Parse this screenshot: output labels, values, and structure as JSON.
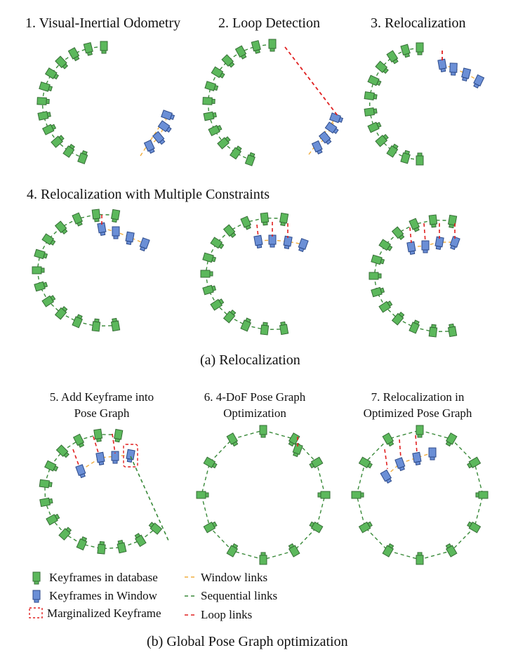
{
  "panels": {
    "p1": "1. Visual-Inertial Odometry",
    "p2": "2. Loop Detection",
    "p3": "3. Relocalization",
    "p4": "4. Relocalization with Multiple Constraints",
    "p5a": "5. Add Keyframe into",
    "p5b": "Pose Graph",
    "p6a": "6. 4-DoF Pose Graph",
    "p6b": "Optimization",
    "p7a": "7. Relocalization in",
    "p7b": "Optimized Pose Graph"
  },
  "captions": {
    "a": "(a)  Relocalization",
    "b": "(b)  Global Pose Graph optimization"
  },
  "legend": {
    "kf_db": "Keyframes in database",
    "kf_win": "Keyframes in Window",
    "marg": "Marginalized Keyframe",
    "window_links": "Window links",
    "seq_links": "Sequential links",
    "loop_links": "Loop links"
  },
  "colors": {
    "keyframe_db": "#5cb85c",
    "keyframe_window": "#6b8fd6",
    "window_link": "#f0ad3e",
    "sequential_link": "#3a8a3a",
    "loop_link": "#e02020"
  },
  "icons": {
    "keyframe_db": "green-camera-icon",
    "keyframe_window": "blue-camera-icon",
    "marginalized": "dashed-red-box-icon"
  }
}
